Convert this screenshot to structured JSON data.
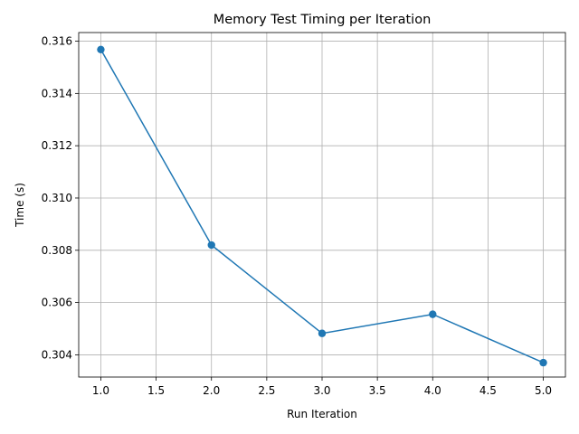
{
  "chart_data": {
    "type": "line",
    "title": "Memory Test Timing per Iteration",
    "xlabel": "Run Iteration",
    "ylabel": "Time (s)",
    "xlim": [
      0.8,
      5.2
    ],
    "ylim": [
      0.30315,
      0.31633
    ],
    "xticks": [
      1.0,
      1.5,
      2.0,
      2.5,
      3.0,
      3.5,
      4.0,
      4.5,
      5.0
    ],
    "xtick_labels": [
      "1.0",
      "1.5",
      "2.0",
      "2.5",
      "3.0",
      "3.5",
      "4.0",
      "4.5",
      "5.0"
    ],
    "yticks": [
      0.304,
      0.306,
      0.308,
      0.31,
      0.312,
      0.314,
      0.316
    ],
    "ytick_labels": [
      "0.304",
      "0.306",
      "0.308",
      "0.310",
      "0.312",
      "0.314",
      "0.316"
    ],
    "grid": true,
    "series": [
      {
        "color": "#1f77b4",
        "marker": "circle",
        "x": [
          1,
          2,
          3,
          4,
          5
        ],
        "y": [
          0.31568,
          0.3082,
          0.30482,
          0.30555,
          0.3037
        ]
      }
    ]
  }
}
